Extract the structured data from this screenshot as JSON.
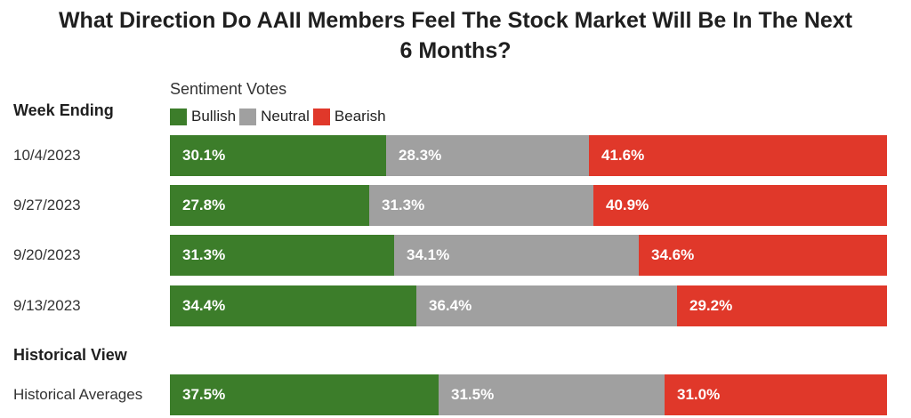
{
  "title_line1": "What Direction Do AAII Members Feel The Stock Market Will Be In The Next",
  "title_line2": "6 Months?",
  "legend_title": "Sentiment Votes",
  "row_header": "Week Ending",
  "historical_header": "Historical View",
  "colors": {
    "bullish": "#3c7d2a",
    "neutral": "#a0a0a0",
    "bearish": "#e0382a"
  },
  "chart_data": {
    "type": "bar",
    "orientation": "horizontal",
    "stacked": "100%",
    "categories": [
      "10/4/2023",
      "9/27/2023",
      "9/20/2023",
      "9/13/2023",
      "Historical Averages"
    ],
    "series": [
      {
        "name": "Bullish",
        "values": [
          30.1,
          27.8,
          31.3,
          34.4,
          37.5
        ],
        "labels": [
          "30.1%",
          "27.8%",
          "31.3%",
          "34.4%",
          "37.5%"
        ]
      },
      {
        "name": "Neutral",
        "values": [
          28.3,
          31.3,
          34.1,
          36.4,
          31.5
        ],
        "labels": [
          "28.3%",
          "31.3%",
          "34.1%",
          "36.4%",
          "31.5%"
        ]
      },
      {
        "name": "Bearish",
        "values": [
          41.6,
          40.9,
          34.6,
          29.2,
          31.0
        ],
        "labels": [
          "41.6%",
          "40.9%",
          "34.6%",
          "29.2%",
          "31.0%"
        ]
      }
    ],
    "legend_position": "top-left"
  }
}
